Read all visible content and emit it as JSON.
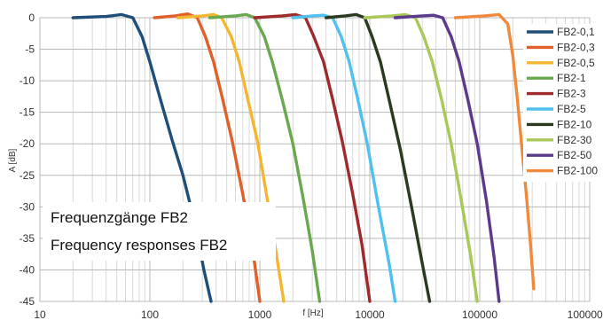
{
  "chart_data": {
    "type": "line",
    "title": "",
    "xlabel": "f [Hz]",
    "ylabel": "A [dB]",
    "x_scale": "log",
    "xlim": [
      10,
      1000000
    ],
    "ylim": [
      -45,
      0
    ],
    "x_ticks": [
      10,
      100,
      1000,
      10000,
      100000,
      1000000
    ],
    "x_tick_labels": [
      "10",
      "100",
      "1000",
      "10000",
      "100000",
      "1000000"
    ],
    "y_ticks": [
      0,
      -5,
      -10,
      -15,
      -20,
      -25,
      -30,
      -35,
      -40,
      -45
    ],
    "y_tick_labels": [
      "0",
      "-5",
      "-10",
      "-15",
      "-20",
      "-25",
      "-30",
      "-35",
      "-40",
      "-45"
    ],
    "grid": true,
    "legend_position": "right",
    "annotations": [
      "Frequenzgänge FB2",
      "Frequency responses FB2"
    ],
    "series": [
      {
        "name": "FB2-0,1",
        "color": "#1f4e79",
        "x": [
          20,
          40,
          55,
          70,
          85,
          100,
          125,
          160,
          200,
          260,
          310,
          360
        ],
        "y": [
          0.0,
          0.2,
          0.5,
          0.0,
          -3,
          -7,
          -13,
          -19.5,
          -25,
          -33,
          -40,
          -45
        ]
      },
      {
        "name": "FB2-0,3",
        "color": "#e0602a",
        "x": [
          110,
          170,
          220,
          270,
          320,
          380,
          460,
          560,
          700,
          850,
          1000
        ],
        "y": [
          0.0,
          0.3,
          0.6,
          0.0,
          -3,
          -7,
          -13,
          -19.5,
          -28,
          -36,
          -45
        ]
      },
      {
        "name": "FB2-0,5",
        "color": "#f4b630",
        "x": [
          180,
          300,
          380,
          450,
          550,
          650,
          780,
          950,
          1150,
          1400,
          1650
        ],
        "y": [
          0.0,
          0.3,
          0.5,
          0.0,
          -3,
          -7,
          -13,
          -19.5,
          -28,
          -37,
          -45
        ]
      },
      {
        "name": "FB2-1",
        "color": "#6aa84f",
        "x": [
          350,
          600,
          750,
          900,
          1100,
          1300,
          1600,
          2000,
          2500,
          3000,
          3500
        ],
        "y": [
          0.0,
          0.3,
          0.5,
          0.0,
          -3,
          -7,
          -13,
          -20,
          -29,
          -37,
          -45
        ]
      },
      {
        "name": "FB2-3",
        "color": "#9e2a2b",
        "x": [
          900,
          1600,
          2100,
          2600,
          3100,
          3800,
          4600,
          5600,
          7000,
          8500,
          10000
        ],
        "y": [
          0.0,
          0.3,
          0.5,
          0.0,
          -3,
          -7,
          -13,
          -19.5,
          -28,
          -36,
          -45
        ]
      },
      {
        "name": "FB2-5",
        "color": "#4fc0ef",
        "x": [
          2000,
          3000,
          3800,
          4600,
          5500,
          6500,
          7800,
          9500,
          12000,
          15000,
          17000
        ],
        "y": [
          0.0,
          0.3,
          0.4,
          0.0,
          -3,
          -7,
          -13,
          -20,
          -30,
          -39,
          -45
        ]
      },
      {
        "name": "FB2-10",
        "color": "#2b3a1f",
        "x": [
          4000,
          6000,
          7500,
          9000,
          10500,
          12500,
          15000,
          19000,
          24000,
          30000,
          35000
        ],
        "y": [
          0.0,
          0.3,
          0.5,
          0.0,
          -3,
          -7,
          -13,
          -21,
          -30,
          -39,
          -45
        ]
      },
      {
        "name": "FB2-30",
        "color": "#a8c957",
        "x": [
          9000,
          16000,
          21000,
          26000,
          31000,
          37000,
          45000,
          55000,
          68000,
          83000,
          95000
        ],
        "y": [
          0.0,
          0.3,
          0.5,
          0.0,
          -3,
          -7,
          -13,
          -20,
          -29,
          -38,
          -45
        ]
      },
      {
        "name": "FB2-50",
        "color": "#5b3a8c",
        "x": [
          17000,
          30000,
          38000,
          46000,
          55000,
          65000,
          78000,
          95000,
          115000,
          135000,
          150000
        ],
        "y": [
          0.0,
          0.3,
          0.4,
          0.0,
          -3,
          -7,
          -13,
          -20,
          -29,
          -38,
          -45
        ]
      },
      {
        "name": "FB2-100",
        "color": "#ef8a3c",
        "x": [
          60000,
          110000,
          150000,
          180000,
          200000,
          220000,
          240000,
          265000,
          290000,
          310000
        ],
        "y": [
          0.0,
          0.3,
          0.5,
          -1,
          -6,
          -13,
          -20,
          -28,
          -36,
          -43
        ]
      }
    ]
  }
}
